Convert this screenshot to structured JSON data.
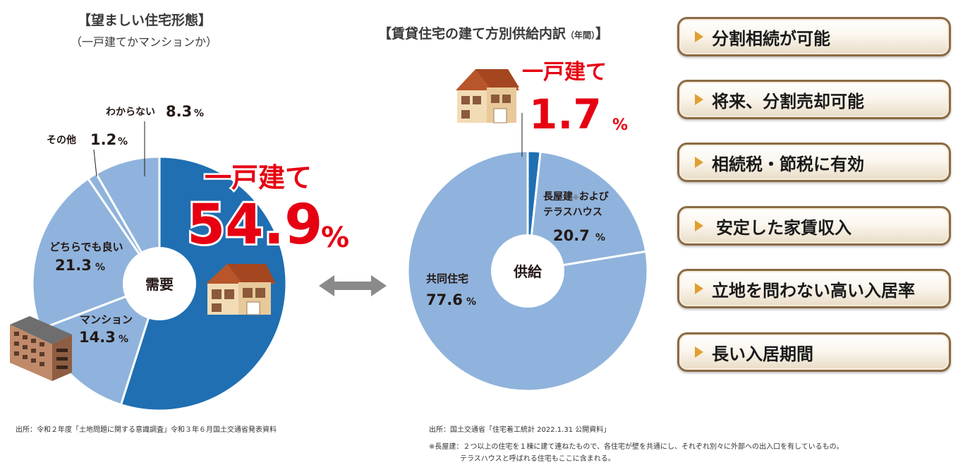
{
  "left_panel": {
    "title": "【望ましい住宅形態】",
    "subtitle": "（一戸建てかマンションか）",
    "center_label": "需要",
    "highlight": {
      "label": "一戸建て",
      "value": "54.9",
      "unit": "%"
    },
    "source": "出所：令和２年度「土地問題に関する意識調査」令和３年６月国土交通省発表資料"
  },
  "right_panel": {
    "title": "【賃貸住宅の建て方別供給内訳",
    "title_small": "（年間）",
    "title_end": "】",
    "center_label": "供給",
    "highlight": {
      "label": "一戸建て",
      "value": "1.7",
      "unit": "%"
    },
    "source": "出所：国土交通省「住宅着工統計 2022.1.31 公開資料」",
    "note_line1": "※長屋建：２つ以上の住宅を１棟に建て連ねたもので、各住宅が壁を共通にし、それぞれ別々に外部への出入口を有しているもの。",
    "note_line2": "テラスハウスと呼ばれる住宅もここに含まれる。"
  },
  "chart_data": [
    {
      "type": "pie",
      "title": "【望ましい住宅形態】",
      "subtitle": "（一戸建てかマンションか）",
      "categories": [
        "一戸建て",
        "マンション",
        "どちらでも良い",
        "その他",
        "わからない"
      ],
      "values": [
        54.9,
        14.3,
        21.3,
        1.2,
        8.3
      ],
      "unit": "%",
      "colors": [
        "#1f6fb2",
        "#8fb3dc",
        "#8fb3dc",
        "#8fb3dc",
        "#8fb3dc"
      ],
      "labels": [
        {
          "name": "",
          "value": ""
        },
        {
          "name": "マンション",
          "value": "14.3"
        },
        {
          "name": "どちらでも良い",
          "value": "21.3"
        },
        {
          "name": "その他",
          "value": "1.2"
        },
        {
          "name": "わからない",
          "value": "8.3"
        }
      ]
    },
    {
      "type": "pie",
      "title": "【賃貸住宅の建て方別供給内訳（年間）】",
      "categories": [
        "一戸建て",
        "長屋建※およびテラスハウス",
        "共同住宅"
      ],
      "values": [
        1.7,
        20.7,
        77.6
      ],
      "unit": "%",
      "colors": [
        "#1f6fb2",
        "#8fb3dc",
        "#8fb3dc"
      ],
      "labels": [
        {
          "name": "",
          "value": ""
        },
        {
          "name": "長屋建※および\nテラスハウス",
          "value": "20.7"
        },
        {
          "name": "共同住宅",
          "value": "77.6"
        }
      ]
    }
  ],
  "features": [
    "分割相続が可能",
    "将来、分割売却可能",
    "相続税・節税に有効",
    "安定した家賃収入",
    "立地を問わない高い入居率",
    "長い入居期間"
  ],
  "colors": {
    "dark_blue": "#1f6fb2",
    "light_blue": "#8fb3dc",
    "highlight_red": "#e60012",
    "pill_border": "#8b6a45",
    "pill_marker": "#e0a030"
  },
  "icons": [
    "house-icon",
    "apartment-building-icon",
    "double-arrow-icon",
    "triangle-marker-icon"
  ]
}
